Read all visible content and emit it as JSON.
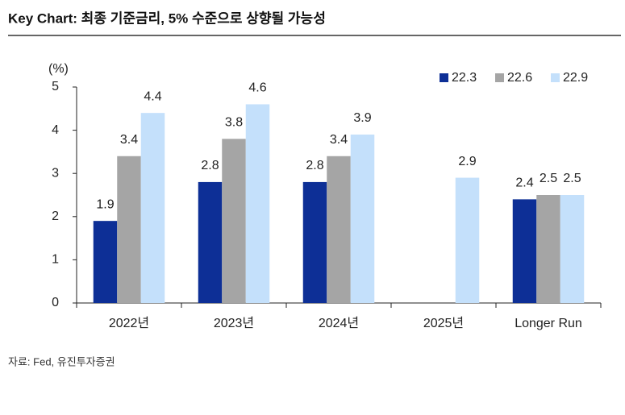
{
  "chart_data": {
    "type": "bar",
    "title": "Key Chart: 최종 기준금리, 5% 수준으로 상향될 가능성",
    "ylabel": "(%)",
    "source": "자료: Fed, 유진투자증권",
    "categories": [
      "2022년",
      "2023년",
      "2024년",
      "2025년",
      "Longer Run"
    ],
    "series": [
      {
        "name": "22.3",
        "color": "#0d2f96",
        "values": [
          1.9,
          2.8,
          2.8,
          null,
          2.4
        ]
      },
      {
        "name": "22.6",
        "color": "#a5a5a5",
        "values": [
          3.4,
          3.8,
          3.4,
          null,
          2.5
        ]
      },
      {
        "name": "22.9",
        "color": "#c4e0fb",
        "values": [
          4.4,
          4.6,
          3.9,
          2.9,
          2.5
        ]
      }
    ],
    "ylim": [
      0,
      5
    ],
    "yticks": [
      0,
      1,
      2,
      3,
      4,
      5
    ],
    "grid": false,
    "legend": "top-right"
  }
}
